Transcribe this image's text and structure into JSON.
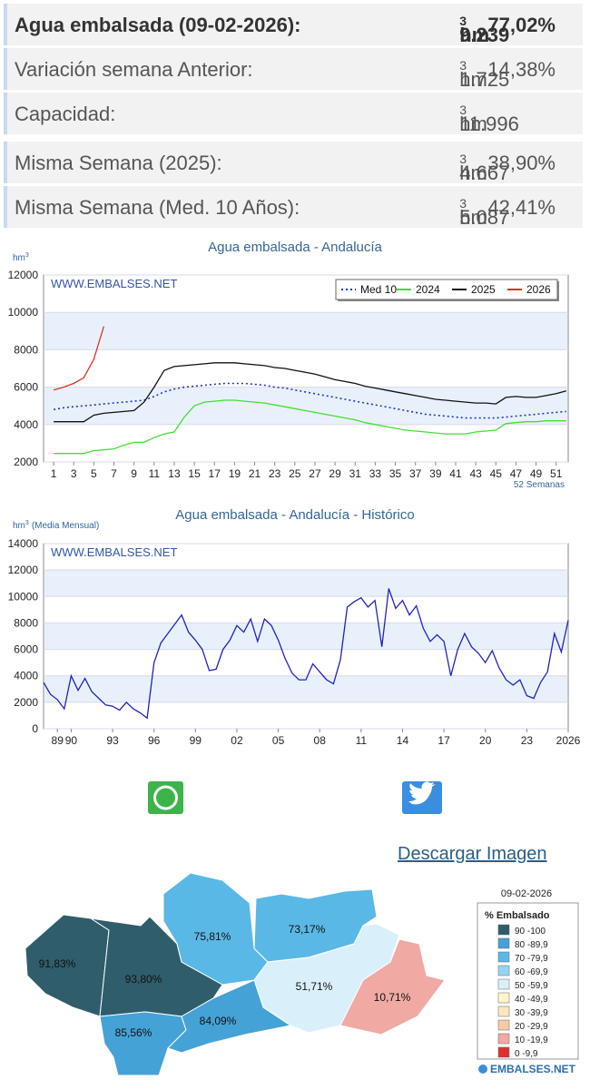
{
  "stats": [
    {
      "label": "Agua embalsada (09-02-2026):",
      "value": "9.239",
      "unit": "hm",
      "exp": "3",
      "percent": "77,02%"
    },
    {
      "label": "Variación semana Anterior:",
      "value": "1.725",
      "unit": "hm",
      "exp": "3",
      "percent": "14,38%"
    },
    {
      "label": "Capacidad:",
      "value": "11.996",
      "unit": "hm",
      "exp": "3"
    },
    {
      "label": "Misma Semana (2025):",
      "value": "4.667",
      "unit": "hm",
      "exp": "3",
      "percent": "38,90%"
    },
    {
      "label": "Misma Semana (Med. 10 Años):",
      "value": "5.087",
      "unit": "hm",
      "exp": "3",
      "percent": "42,41%"
    }
  ],
  "charts": [
    {
      "type": "line",
      "title": "Agua embalsada - Andalucía",
      "watermark": "WWW.EMBALSES.NET",
      "y_label": "hm",
      "y_label_sup": "3",
      "x_label": "52 Semanas",
      "x": [
        1,
        2,
        3,
        4,
        5,
        6,
        7,
        8,
        9,
        10,
        11,
        12,
        13,
        14,
        15,
        16,
        17,
        18,
        19,
        20,
        21,
        22,
        23,
        24,
        25,
        26,
        27,
        28,
        29,
        30,
        31,
        32,
        33,
        34,
        35,
        36,
        37,
        38,
        39,
        40,
        41,
        42,
        43,
        44,
        45,
        46,
        47,
        48,
        49,
        50,
        51,
        52
      ],
      "xlim": [
        0,
        52.2
      ],
      "xticks": [
        1,
        3,
        5,
        7,
        9,
        11,
        13,
        15,
        17,
        19,
        21,
        23,
        25,
        27,
        29,
        31,
        33,
        35,
        37,
        39,
        41,
        43,
        45,
        47,
        49,
        51
      ],
      "ylim": [
        2000,
        12000
      ],
      "yticks": [
        2000,
        4000,
        6000,
        8000,
        10000,
        12000
      ],
      "grid": true,
      "legend": "top-right",
      "series": [
        {
          "name": "Med 10",
          "color": "#2233cc",
          "style": "dotted",
          "values": [
            4800,
            4900,
            4950,
            5000,
            5050,
            5100,
            5150,
            5200,
            5250,
            5300,
            5500,
            5750,
            5900,
            6000,
            6050,
            6100,
            6150,
            6200,
            6200,
            6200,
            6150,
            6100,
            6000,
            5950,
            5850,
            5750,
            5650,
            5550,
            5450,
            5350,
            5250,
            5150,
            5050,
            4950,
            4850,
            4750,
            4650,
            4550,
            4500,
            4450,
            4400,
            4350,
            4350,
            4350,
            4350,
            4400,
            4450,
            4500,
            4550,
            4600,
            4650,
            4700
          ]
        },
        {
          "name": "2024",
          "color": "#44dd33",
          "style": "solid",
          "values": [
            2450,
            2450,
            2450,
            2450,
            2600,
            2650,
            2700,
            2900,
            3050,
            3050,
            3300,
            3500,
            3600,
            4400,
            5000,
            5200,
            5250,
            5300,
            5300,
            5250,
            5200,
            5150,
            5050,
            4950,
            4850,
            4750,
            4650,
            4550,
            4450,
            4350,
            4250,
            4100,
            4000,
            3900,
            3800,
            3700,
            3650,
            3600,
            3550,
            3500,
            3500,
            3500,
            3600,
            3650,
            3700,
            4050,
            4100,
            4150,
            4150,
            4200,
            4200,
            4200
          ]
        },
        {
          "name": "2025",
          "color": "#111111",
          "style": "solid",
          "values": [
            4150,
            4150,
            4150,
            4150,
            4500,
            4600,
            4650,
            4700,
            4750,
            5200,
            6000,
            6900,
            7100,
            7150,
            7200,
            7250,
            7300,
            7300,
            7300,
            7250,
            7200,
            7150,
            7050,
            7000,
            6900,
            6800,
            6700,
            6550,
            6400,
            6300,
            6200,
            6050,
            5950,
            5850,
            5750,
            5650,
            5550,
            5450,
            5350,
            5300,
            5250,
            5200,
            5150,
            5150,
            5100,
            5450,
            5500,
            5450,
            5450,
            5550,
            5650,
            5800
          ]
        },
        {
          "name": "2026",
          "color": "#dd3322",
          "style": "solid",
          "values": [
            5850,
            6000,
            6200,
            6500,
            7500,
            9250,
            null,
            null,
            null,
            null,
            null,
            null,
            null,
            null,
            null,
            null,
            null,
            null,
            null,
            null,
            null,
            null,
            null,
            null,
            null,
            null,
            null,
            null,
            null,
            null,
            null,
            null,
            null,
            null,
            null,
            null,
            null,
            null,
            null,
            null,
            null,
            null,
            null,
            null,
            null,
            null,
            null,
            null,
            null,
            null,
            null,
            null
          ]
        }
      ]
    },
    {
      "type": "line",
      "title": "Agua embalsada - Andalucía - Histórico",
      "watermark": "WWW.EMBALSES.NET",
      "y_label": "hm",
      "y_label_sup": "3",
      "y_label_note": "(Media Mensual)",
      "x": [
        1988,
        1988.5,
        1989,
        1989.5,
        1990,
        1990.5,
        1991,
        1991.5,
        1992,
        1992.5,
        1993,
        1993.5,
        1994,
        1994.5,
        1995,
        1995.5,
        1996,
        1996.5,
        1997,
        1997.5,
        1998,
        1998.5,
        1999,
        1999.5,
        2000,
        2000.5,
        2001,
        2001.5,
        2002,
        2002.5,
        2003,
        2003.5,
        2004,
        2004.5,
        2005,
        2005.5,
        2006,
        2006.5,
        2007,
        2007.5,
        2008,
        2008.5,
        2009,
        2009.5,
        2010,
        2010.5,
        2011,
        2011.5,
        2012,
        2012.5,
        2013,
        2013.5,
        2014,
        2014.5,
        2015,
        2015.5,
        2016,
        2016.5,
        2017,
        2017.5,
        2018,
        2018.5,
        2019,
        2019.5,
        2020,
        2020.5,
        2021,
        2021.5,
        2022,
        2022.5,
        2023,
        2023.5,
        2024,
        2024.5,
        2025,
        2025.5,
        2026
      ],
      "xlim": [
        1988,
        2026
      ],
      "xticks": [
        {
          "value": 1989,
          "label": "89"
        },
        {
          "value": 1990,
          "label": "90"
        },
        {
          "value": 1993,
          "label": "93"
        },
        {
          "value": 1996,
          "label": "96"
        },
        {
          "value": 1999,
          "label": "99"
        },
        {
          "value": 2002,
          "label": "02"
        },
        {
          "value": 2005,
          "label": "05"
        },
        {
          "value": 2008,
          "label": "08"
        },
        {
          "value": 2011,
          "label": "11"
        },
        {
          "value": 2014,
          "label": "14"
        },
        {
          "value": 2017,
          "label": "17"
        },
        {
          "value": 2020,
          "label": "20"
        },
        {
          "value": 2023,
          "label": "23"
        },
        2026
      ],
      "ylim": [
        0,
        14000
      ],
      "yticks": [
        0,
        2000,
        4000,
        6000,
        8000,
        10000,
        12000,
        14000
      ],
      "grid": true,
      "series": [
        {
          "color": "#2222bb",
          "style": "solid",
          "values": [
            3500,
            2600,
            2200,
            1500,
            4000,
            2900,
            3800,
            2800,
            2300,
            1800,
            1700,
            1400,
            2000,
            1500,
            1200,
            800,
            5000,
            6500,
            7200,
            7900,
            8600,
            7300,
            6700,
            6000,
            4400,
            4500,
            6000,
            6700,
            7800,
            7300,
            8300,
            6600,
            8300,
            7800,
            6700,
            5300,
            4200,
            3700,
            3700,
            4900,
            4300,
            3700,
            3400,
            5200,
            9200,
            9600,
            9900,
            9200,
            9700,
            6200,
            10600,
            9100,
            9700,
            8600,
            9300,
            7600,
            6600,
            7100,
            6600,
            4000,
            6000,
            7200,
            6200,
            5700,
            5000,
            5900,
            4600,
            3700,
            3300,
            3700,
            2500,
            2300,
            3500,
            4300,
            7200,
            5800,
            8200
          ]
        }
      ]
    }
  ],
  "share": {
    "whatsapp": "WhatsApp",
    "twitter": "Twitter"
  },
  "download": "Descargar Imagen",
  "map": {
    "regions": [
      {
        "label": "91,83%",
        "color": "#2f5d6b"
      },
      {
        "label": "93,80%",
        "color": "#2f5d6b"
      },
      {
        "label": "75,81%",
        "color": "#5ab8e6"
      },
      {
        "label": "73,17%",
        "color": "#5ab8e6"
      },
      {
        "label": "51,71%",
        "color": "#d9f0fa"
      },
      {
        "label": "10,71%",
        "color": "#f0a9a3"
      },
      {
        "label": "85,56%",
        "color": "#45a2d6"
      },
      {
        "label": "84,09%",
        "color": "#45a2d6"
      }
    ],
    "legend": {
      "date": "09-02-2026",
      "title": "% Embalsado",
      "items": [
        {
          "label": "90 -100",
          "color": "#2f5d6b"
        },
        {
          "label": "80 -89,9",
          "color": "#45a2d6"
        },
        {
          "label": "70 -79,9",
          "color": "#5ab8e6"
        },
        {
          "label": "60 -69,9",
          "color": "#92d6f4"
        },
        {
          "label": "50 -59,9",
          "color": "#d9f0fa"
        },
        {
          "label": "40 -49,9",
          "color": "#fdf6c8"
        },
        {
          "label": "30 -39,9",
          "color": "#fbe6c2"
        },
        {
          "label": "20 -29,9",
          "color": "#f8cba8"
        },
        {
          "label": "10 -19,9",
          "color": "#f0a9a3"
        },
        {
          "label": "0 -9,9",
          "color": "#e03030"
        }
      ]
    },
    "logo": "EMBALSES.NET"
  }
}
